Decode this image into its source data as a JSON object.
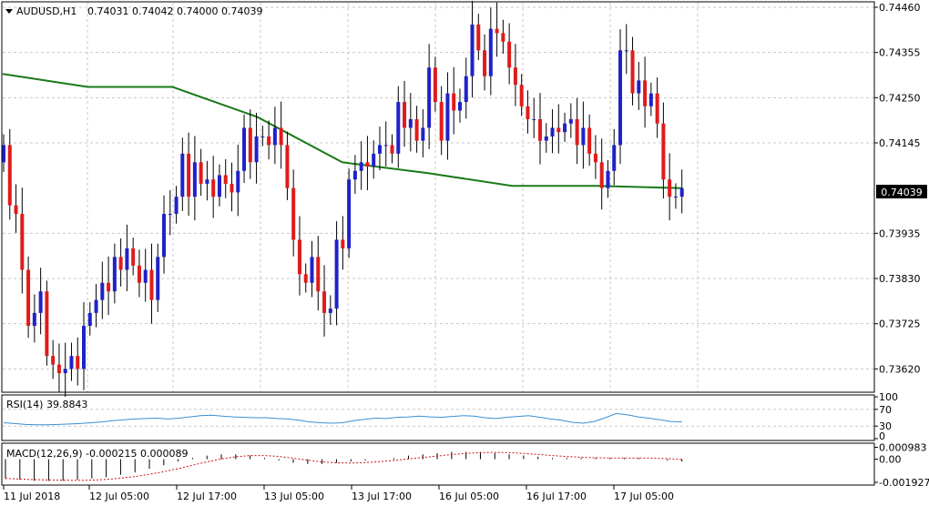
{
  "symbol_header": {
    "symbol": "AUDUSD,H1",
    "open": "0.74031",
    "high": "0.74042",
    "low": "0.74000",
    "close": "0.74039"
  },
  "current_price_label": "0.74039",
  "colors": {
    "bull": "#1f22c8",
    "bear": "#e01b1b",
    "moving_average": "#1a7a1a",
    "rsi_line": "#3b8fd1",
    "macd_signal": "#d01010",
    "grid": "#c8c8c8"
  },
  "chart_data": [
    {
      "type": "candlestick",
      "ylim": [
        0.7357,
        0.7446
      ],
      "y_ticks": [
        "0.74460",
        "0.74355",
        "0.74250",
        "0.74145",
        "0.73935",
        "0.73830",
        "0.73725",
        "0.73620"
      ],
      "x_ticks": [
        "11 Jul 2018",
        "12 Jul 05:00",
        "12 Jul 17:00",
        "13 Jul 05:00",
        "13 Jul 17:00",
        "16 Jul 05:00",
        "16 Jul 17:00",
        "17 Jul 05:00"
      ],
      "grid": true,
      "closes": [
        0.7414,
        0.74,
        0.7398,
        0.7385,
        0.7372,
        0.7375,
        0.738,
        0.7365,
        0.7363,
        0.7361,
        0.7362,
        0.7365,
        0.7362,
        0.7372,
        0.7375,
        0.7378,
        0.7382,
        0.738,
        0.7388,
        0.7385,
        0.739,
        0.7386,
        0.7382,
        0.7385,
        0.7378,
        0.7388,
        0.7398,
        0.7398,
        0.7402,
        0.7412,
        0.7402,
        0.741,
        0.7405,
        0.7406,
        0.7402,
        0.7407,
        0.7405,
        0.7403,
        0.7408,
        0.7418,
        0.741,
        0.7416,
        0.7416,
        0.7414,
        0.7418,
        0.7414,
        0.7404,
        0.7392,
        0.7384,
        0.7382,
        0.7388,
        0.738,
        0.7375,
        0.7376,
        0.7392,
        0.739,
        0.7406,
        0.7408,
        0.741,
        0.7409,
        0.7412,
        0.7414,
        0.7414,
        0.7412,
        0.7424,
        0.7418,
        0.742,
        0.7415,
        0.7418,
        0.7432,
        0.7424,
        0.7415,
        0.7426,
        0.7422,
        0.7424,
        0.743,
        0.7442,
        0.7436,
        0.743,
        0.7441,
        0.744,
        0.7438,
        0.7432,
        0.7428,
        0.7423,
        0.742,
        0.742,
        0.7415,
        0.7416,
        0.7418,
        0.7417,
        0.7419,
        0.742,
        0.7414,
        0.7418,
        0.7412,
        0.741,
        0.7404,
        0.7408,
        0.7414,
        0.7436,
        0.7436,
        0.7426,
        0.7429,
        0.7423,
        0.7426,
        0.7419,
        0.7406,
        0.7402,
        0.7402,
        0.7404
      ]
    },
    {
      "type": "line",
      "series": [
        {
          "values": [
            0.74305,
            0.74275,
            0.74275,
            0.74205,
            0.741,
            0.74075,
            0.74045,
            0.74045,
            0.7404
          ]
        }
      ]
    },
    {
      "type": "line",
      "title": "RSI(14) 39.8843",
      "ylim": [
        0,
        100
      ],
      "y_ticks": [
        "100",
        "70",
        "30",
        "0"
      ],
      "series": [
        {
          "values": [
            38,
            36,
            34,
            33,
            33,
            34,
            35,
            36,
            38,
            40,
            43,
            45,
            47,
            48,
            49,
            47,
            49,
            52,
            55,
            56,
            54,
            52,
            51,
            50,
            50,
            48,
            47,
            44,
            40,
            38,
            37,
            38,
            43,
            46,
            49,
            48,
            51,
            52,
            54,
            52,
            51,
            53,
            55,
            54,
            50,
            48,
            51,
            53,
            55,
            51,
            47,
            44,
            39,
            37,
            41,
            50,
            60,
            57,
            52,
            49,
            45,
            41,
            40
          ]
        }
      ]
    },
    {
      "type": "bar",
      "title": "MACD(12,26,9) -0.000215 0.000089",
      "ylim": [
        -0.002,
        0.0011
      ],
      "y_ticks": [
        "0.000983",
        "0.00",
        "-0.001927"
      ],
      "series": [
        {
          "values": [
            -0.0016,
            -0.0017,
            -0.0018,
            -0.0018,
            -0.0018,
            -0.0017,
            -0.0016,
            -0.0015,
            -0.0013,
            -0.0011,
            -0.0008,
            -0.0005,
            -0.0002,
            0.0001,
            0.0003,
            0.0004,
            0.0004,
            0.0003,
            0.0001,
            -0.0001,
            -0.0003,
            -0.0004,
            -0.0004,
            -0.0003,
            -0.0002,
            -0.0001,
            0.0,
            0.0001,
            0.0003,
            0.0004,
            0.0005,
            0.0006,
            0.0006,
            0.0006,
            0.0005,
            0.0004,
            0.0003,
            0.0002,
            0.0001,
            0.0001,
            0.0001,
            0.0001,
            0.0001,
            0.0001,
            0.0001,
            0.0,
            -0.0001,
            -0.0002
          ]
        }
      ]
    }
  ]
}
